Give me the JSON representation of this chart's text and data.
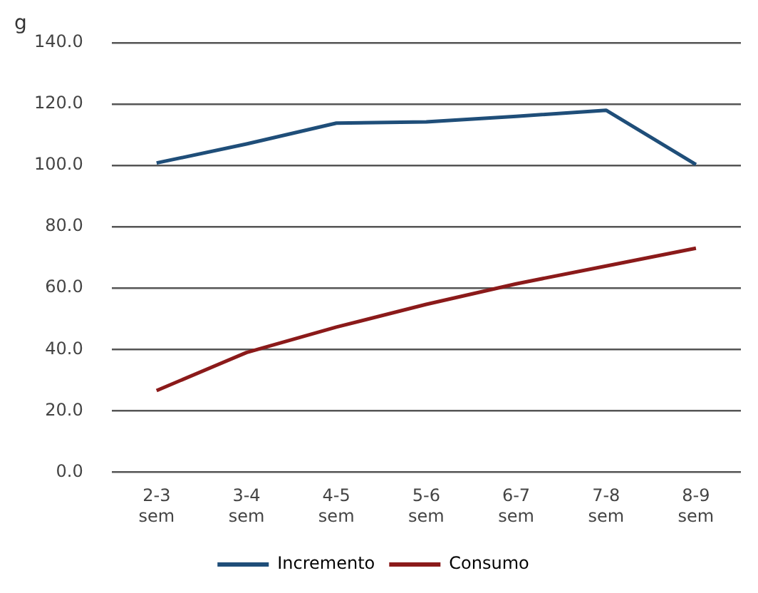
{
  "chart_data": {
    "type": "line",
    "ylabel": "g",
    "categories": [
      "2-3 sem",
      "3-4 sem",
      "4-5 sem",
      "5-6 sem",
      "6-7 sem",
      "7-8 sem",
      "8-9 sem"
    ],
    "series": [
      {
        "name": "Incremento",
        "color": "#1f4e79",
        "values": [
          100.8,
          107,
          113.8,
          114.2,
          116,
          118,
          100.3
        ]
      },
      {
        "name": "Consumo",
        "color": "#8b1a1a",
        "values": [
          26.6,
          39,
          47.3,
          54.7,
          61.4,
          67.2,
          73
        ]
      }
    ],
    "ylim": [
      0,
      140
    ],
    "yticks": [
      {
        "value": 0,
        "label": "0.0"
      },
      {
        "value": 20,
        "label": "20.0"
      },
      {
        "value": 40,
        "label": "40.0"
      },
      {
        "value": 60,
        "label": "60.0"
      },
      {
        "value": 80,
        "label": "80.0"
      },
      {
        "value": 100,
        "label": "100.0"
      },
      {
        "value": 120,
        "label": "120.0"
      },
      {
        "value": 140,
        "label": "140.0"
      }
    ],
    "grid": "y",
    "legend": "bottom",
    "marker": "none",
    "line_style": "solid"
  }
}
